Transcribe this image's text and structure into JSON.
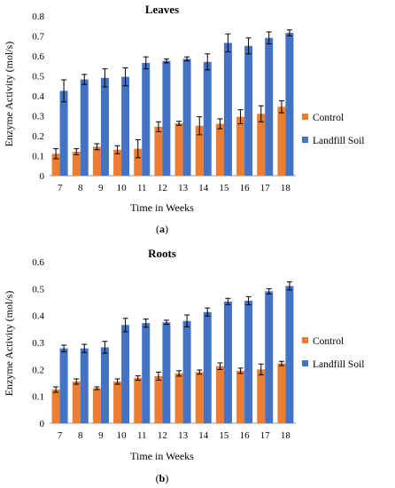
{
  "panel_labels": {
    "a": [
      "(",
      "a",
      ")"
    ],
    "b": [
      "(",
      "b",
      ")"
    ]
  },
  "colors": {
    "control": "#ED7D31",
    "landfill": "#4472C4"
  },
  "chart_data": [
    {
      "type": "bar",
      "title": "Leaves",
      "xlabel": "Time in Weeks",
      "ylabel": "Enzyme Activity (mol/s)",
      "ylim": [
        0,
        0.8
      ],
      "yticks": [
        "0",
        "0.1",
        "0.2",
        "0.3",
        "0.4",
        "0.5",
        "0.6",
        "0.7",
        "0.8"
      ],
      "categories": [
        "7",
        "8",
        "9",
        "10",
        "11",
        "12",
        "13",
        "14",
        "15",
        "16",
        "17",
        "18"
      ],
      "legend_position": "right",
      "series": [
        {
          "name": "Control",
          "color": "#ED7D31",
          "values": [
            0.11,
            0.12,
            0.145,
            0.13,
            0.135,
            0.245,
            0.262,
            0.25,
            0.26,
            0.295,
            0.31,
            0.345
          ],
          "errors": [
            0.025,
            0.015,
            0.015,
            0.02,
            0.045,
            0.025,
            0.01,
            0.045,
            0.025,
            0.035,
            0.04,
            0.03
          ]
        },
        {
          "name": "Landfill Soil",
          "color": "#4472C4",
          "values": [
            0.425,
            0.482,
            0.49,
            0.495,
            0.565,
            0.575,
            0.585,
            0.57,
            0.665,
            0.65,
            0.69,
            0.715
          ],
          "errors": [
            0.055,
            0.025,
            0.045,
            0.045,
            0.03,
            0.01,
            0.01,
            0.04,
            0.045,
            0.04,
            0.03,
            0.015
          ]
        }
      ]
    },
    {
      "type": "bar",
      "title": "Roots",
      "xlabel": "Time in Weeks",
      "ylabel": "Enzyme Activity (mol/s)",
      "ylim": [
        0,
        0.6
      ],
      "yticks": [
        "0",
        "0.1",
        "0.2",
        "0.3",
        "0.4",
        "0.5",
        "0.6"
      ],
      "categories": [
        "7",
        "8",
        "9",
        "10",
        "11",
        "12",
        "13",
        "14",
        "15",
        "16",
        "17",
        "18"
      ],
      "legend_position": "right",
      "series": [
        {
          "name": "Control",
          "color": "#ED7D31",
          "values": [
            0.125,
            0.155,
            0.13,
            0.155,
            0.168,
            0.175,
            0.185,
            0.19,
            0.212,
            0.195,
            0.2,
            0.222
          ],
          "errors": [
            0.01,
            0.01,
            0.005,
            0.01,
            0.008,
            0.015,
            0.01,
            0.008,
            0.012,
            0.01,
            0.02,
            0.008
          ]
        },
        {
          "name": "Landfill Soil",
          "color": "#4472C4",
          "values": [
            0.278,
            0.278,
            0.282,
            0.365,
            0.372,
            0.375,
            0.38,
            0.413,
            0.452,
            0.455,
            0.49,
            0.51
          ],
          "errors": [
            0.012,
            0.015,
            0.022,
            0.025,
            0.015,
            0.008,
            0.022,
            0.015,
            0.012,
            0.015,
            0.01,
            0.015
          ]
        }
      ]
    }
  ]
}
